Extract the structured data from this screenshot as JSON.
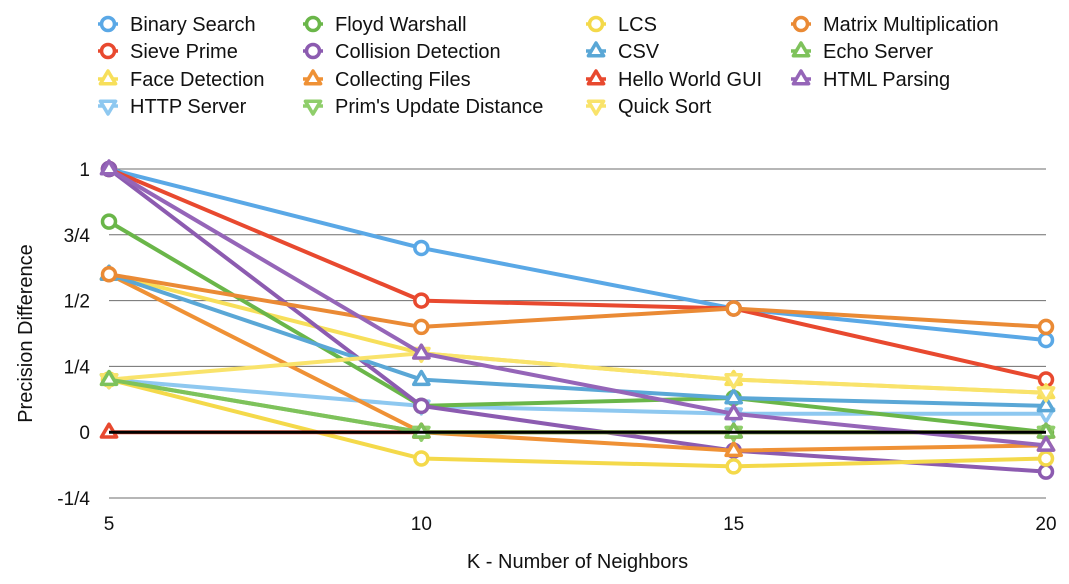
{
  "chart_data": {
    "type": "line",
    "title": "",
    "xlabel": "K - Number of Neighbors",
    "ylabel": "Precision Difference",
    "x": [
      5,
      10,
      15,
      20
    ],
    "x_ticks": [
      "5",
      "10",
      "15",
      "20"
    ],
    "xlim": [
      5,
      20
    ],
    "ylim": [
      -0.25,
      1
    ],
    "y_tick_values": [
      -0.25,
      0,
      0.25,
      0.5,
      0.75,
      1
    ],
    "y_tick_labels": [
      "-1/4",
      "0",
      "1/4",
      "1/2",
      "3/4",
      "1"
    ],
    "grid": true,
    "legend_position": "top",
    "series": [
      {
        "name": "Binary Search",
        "color": "#5aa8e6",
        "marker": "circle",
        "values": [
          1.0,
          0.7,
          0.47,
          0.35
        ]
      },
      {
        "name": "Sieve Prime",
        "color": "#e8492f",
        "marker": "circle",
        "values": [
          1.0,
          0.5,
          0.47,
          0.2
        ]
      },
      {
        "name": "Face Detection",
        "color": "#f7df5a",
        "marker": "triangle-up",
        "values": [
          0.6,
          0.3,
          0.2,
          0.15
        ]
      },
      {
        "name": "HTTP Server",
        "color": "#8ec8f0",
        "marker": "triangle-down",
        "values": [
          0.2,
          0.1,
          0.07,
          0.07
        ]
      },
      {
        "name": "Floyd Warshall",
        "color": "#6ab649",
        "marker": "circle",
        "values": [
          0.8,
          0.1,
          0.13,
          0.0
        ]
      },
      {
        "name": "Collision Detection",
        "color": "#8c5bb0",
        "marker": "circle",
        "values": [
          1.0,
          0.1,
          -0.07,
          -0.15
        ]
      },
      {
        "name": "Collecting Files",
        "color": "#ef9135",
        "marker": "triangle-up",
        "values": [
          0.6,
          0.0,
          -0.07,
          -0.05
        ]
      },
      {
        "name": "Prim's Update Distance",
        "color": "#8fce6b",
        "marker": "triangle-down",
        "values": [
          0.2,
          0.0,
          0.0,
          0.0
        ]
      },
      {
        "name": "LCS",
        "color": "#f4d94a",
        "marker": "circle",
        "values": [
          0.2,
          -0.1,
          -0.13,
          -0.1
        ]
      },
      {
        "name": "CSV",
        "color": "#5aa7d6",
        "marker": "triangle-up",
        "values": [
          0.6,
          0.2,
          0.13,
          0.1
        ]
      },
      {
        "name": "Hello World GUI",
        "color": "#e8492f",
        "marker": "triangle-up",
        "values": [
          0.0,
          0.0,
          0.0,
          0.0
        ]
      },
      {
        "name": "Quick Sort",
        "color": "#f9e36b",
        "marker": "triangle-down",
        "values": [
          0.2,
          0.3,
          0.2,
          0.15
        ]
      },
      {
        "name": "Matrix Multiplication",
        "color": "#ea8a35",
        "marker": "circle",
        "values": [
          0.6,
          0.4,
          0.47,
          0.4
        ]
      },
      {
        "name": "Echo Server",
        "color": "#7ec25b",
        "marker": "triangle-up",
        "values": [
          0.2,
          0.0,
          0.0,
          0.0
        ]
      },
      {
        "name": "HTML Parsing",
        "color": "#9565b8",
        "marker": "triangle-up",
        "values": [
          1.0,
          0.3,
          0.07,
          -0.05
        ]
      }
    ]
  }
}
